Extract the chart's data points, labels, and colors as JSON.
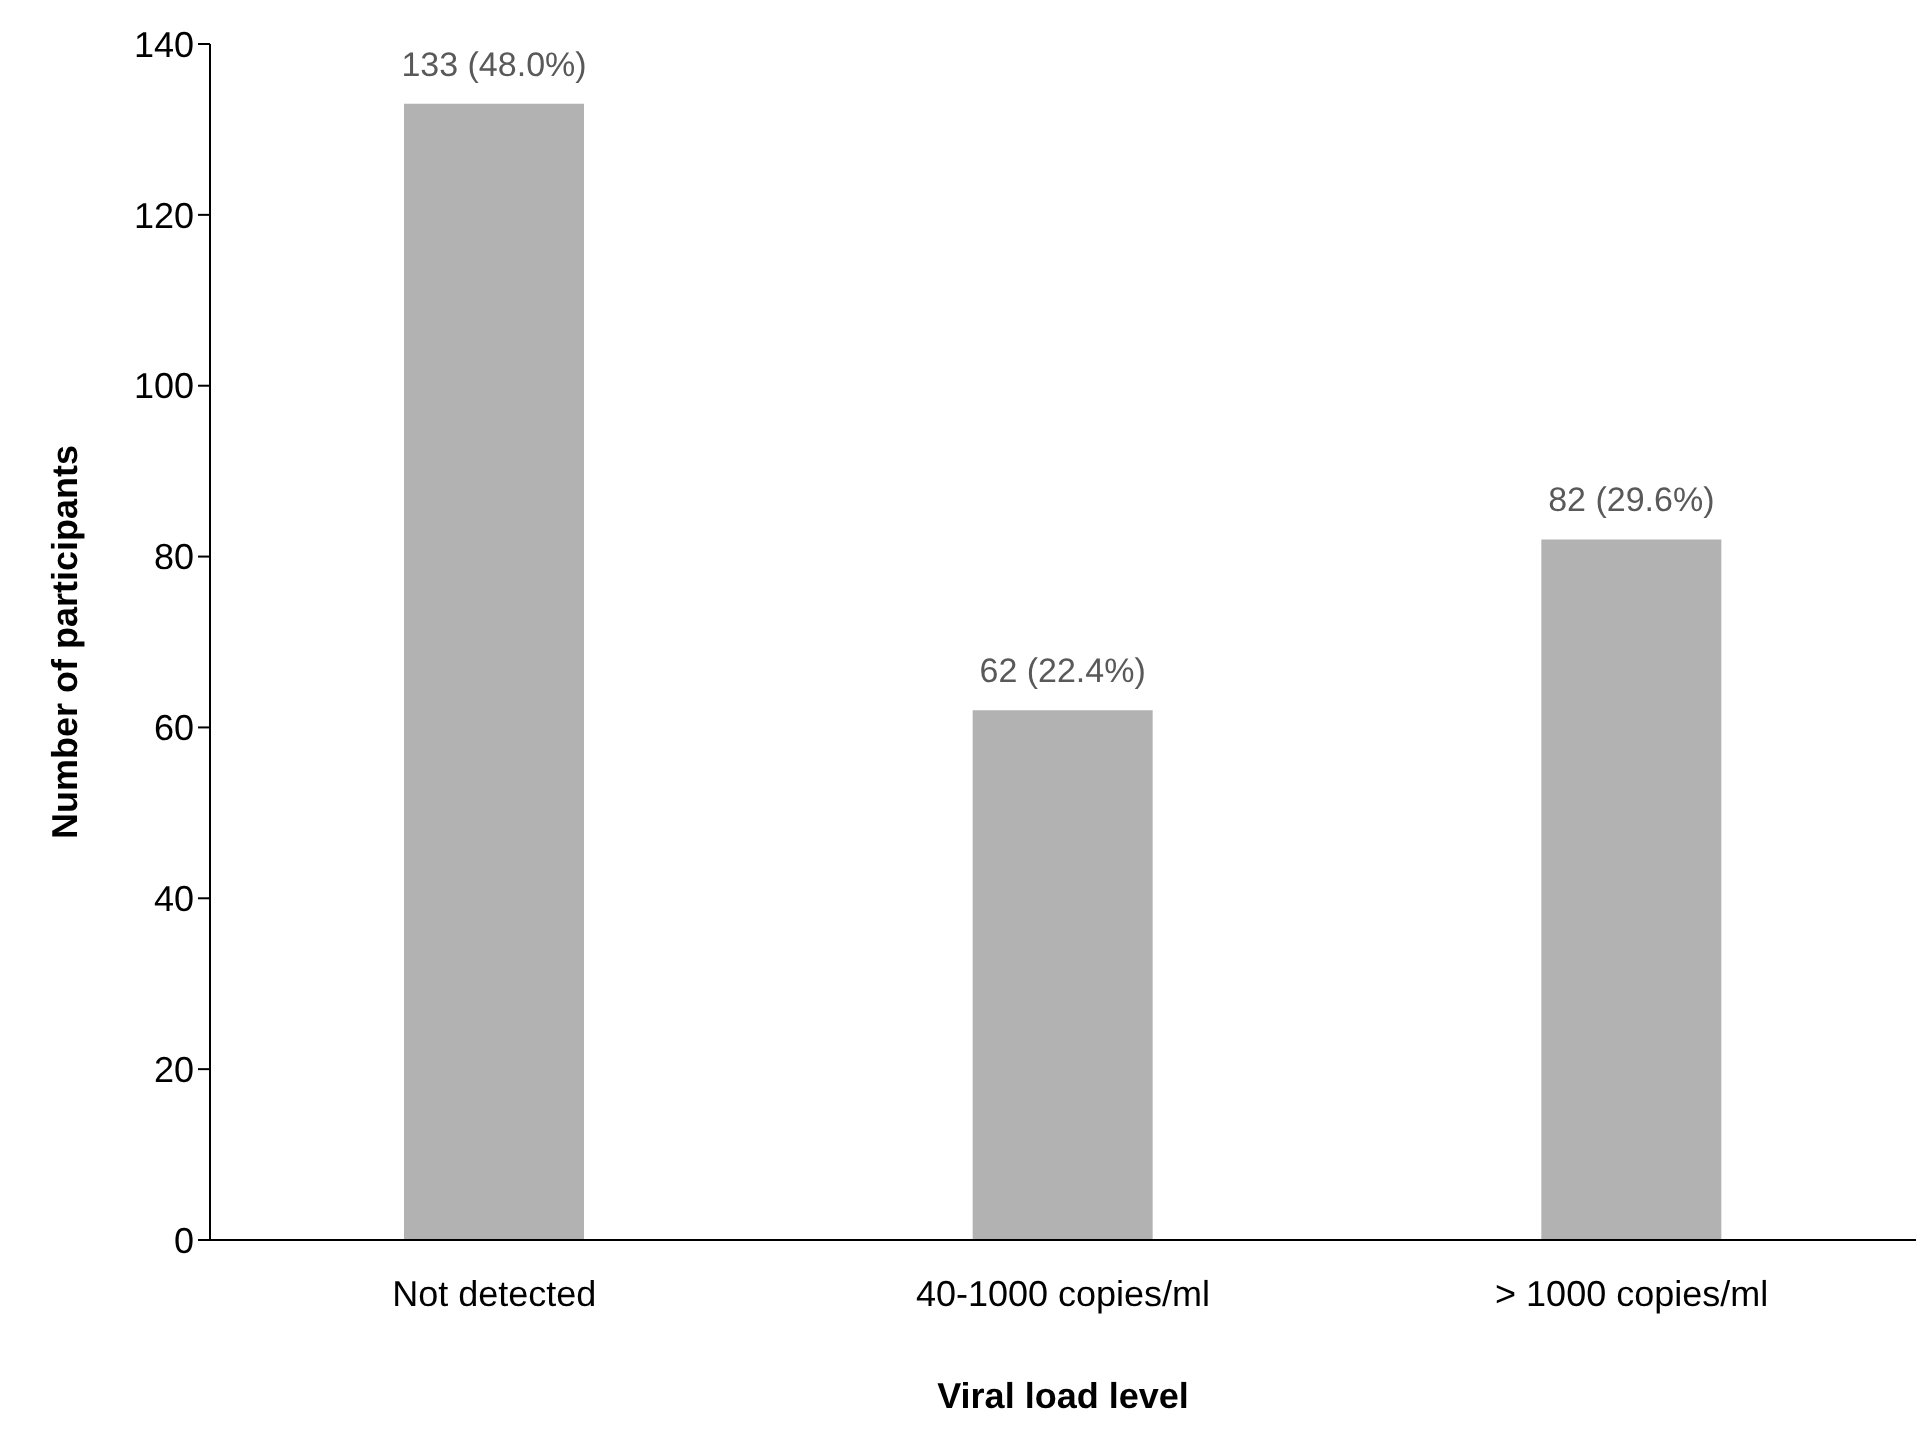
{
  "chart_data": {
    "type": "bar",
    "xlabel": "Viral load level",
    "ylabel": "Number of participants",
    "categories": [
      "Not detected",
      "40-1000 copies/ml",
      "> 1000 copies/ml"
    ],
    "values": [
      133,
      62,
      82
    ],
    "color": "#b2b2b2",
    "value_labels": [
      "133 (48.0%)",
      "62 (22.4%)",
      "82 (29.6%)"
    ],
    "ylim": [
      0,
      140
    ],
    "yticks": [
      0,
      20,
      40,
      60,
      80,
      100,
      120,
      140
    ],
    "grid": false,
    "legend": false
  }
}
